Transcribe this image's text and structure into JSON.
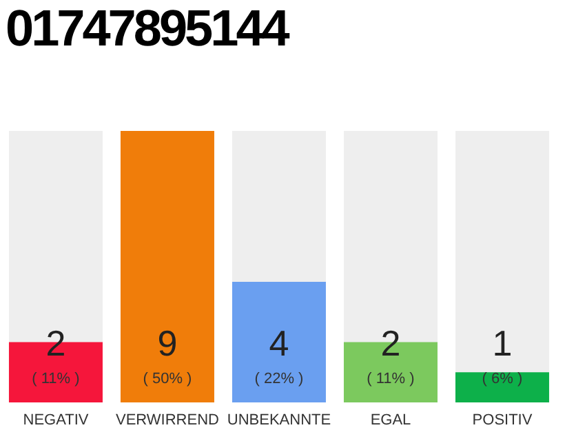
{
  "chart_data": {
    "type": "bar",
    "title": "01747895144",
    "categories": [
      "NEGATIV",
      "VERWIRREND",
      "UNBEKANNTE",
      "EGAL",
      "POSITIV"
    ],
    "values": [
      2,
      9,
      4,
      2,
      1
    ],
    "colors": [
      "#f5163b",
      "#f07d0a",
      "#6a9ff0",
      "#7cc95e",
      "#0db04a"
    ],
    "data_labels": true,
    "annotations": [
      "( 11% )",
      "( 50% )",
      "( 22% )",
      "( 11% )",
      "( 6% )"
    ]
  }
}
